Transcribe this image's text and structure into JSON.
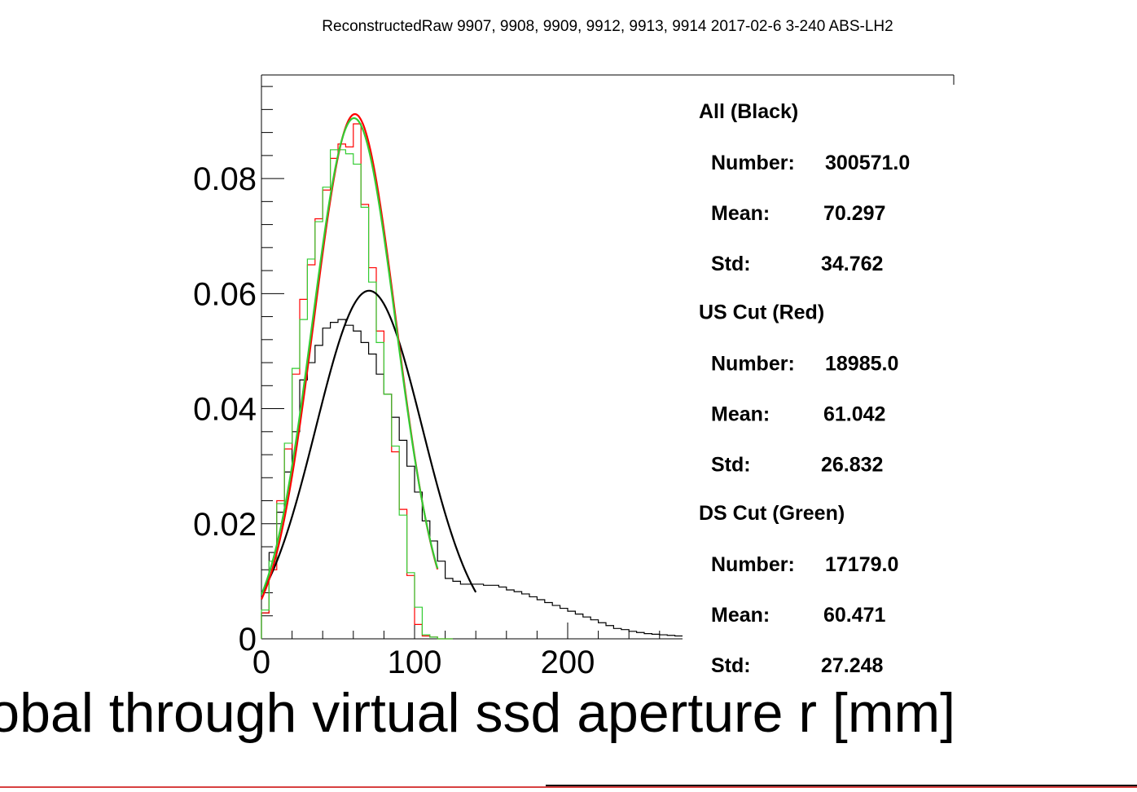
{
  "chart_data": {
    "type": "bar",
    "title": "ReconstructedRaw 9907, 9908, 9909, 9912, 9913, 9914 2017-02-6 3-240 ABS-LH2",
    "xlabel": "obal through virtual ssd aperture r [mm]",
    "ylabel": "",
    "xlim": [
      0,
      275
    ],
    "ylim": [
      0,
      0.098
    ],
    "x_ticks": [
      {
        "value": 0,
        "label": "0"
      },
      {
        "value": 100,
        "label": "100"
      },
      {
        "value": 200,
        "label": "200"
      }
    ],
    "y_ticks": [
      {
        "value": 0,
        "label": "0"
      },
      {
        "value": 0.02,
        "label": "0.02"
      },
      {
        "value": 0.04,
        "label": "0.04"
      },
      {
        "value": 0.06,
        "label": "0.06"
      },
      {
        "value": 0.08,
        "label": "0.08"
      }
    ],
    "bin_width": 5,
    "bin_start": 0,
    "series": [
      {
        "name": "All (Black)",
        "color": "#000000",
        "values": [
          0.0045,
          0.015,
          0.022,
          0.029,
          0.036,
          0.045,
          0.048,
          0.051,
          0.054,
          0.055,
          0.0555,
          0.0545,
          0.0535,
          0.0515,
          0.0495,
          0.046,
          0.0425,
          0.0385,
          0.0345,
          0.03,
          0.0255,
          0.0205,
          0.017,
          0.0135,
          0.0105,
          0.01,
          0.0095,
          0.0095,
          0.0095,
          0.0093,
          0.0093,
          0.009,
          0.0085,
          0.0082,
          0.0078,
          0.0073,
          0.0068,
          0.0063,
          0.0058,
          0.0053,
          0.0048,
          0.0043,
          0.0038,
          0.0033,
          0.0028,
          0.0023,
          0.0018,
          0.0016,
          0.0013,
          0.0011,
          0.0009,
          0.0008,
          0.0007,
          0.0006,
          0.0005
        ]
      },
      {
        "name": "US Cut (Red)",
        "color": "#ff0000",
        "values": [
          0.0045,
          0.012,
          0.024,
          0.033,
          0.046,
          0.059,
          0.065,
          0.073,
          0.078,
          0.0835,
          0.086,
          0.0855,
          0.0895,
          0.0755,
          0.0645,
          0.0535,
          0.0425,
          0.0325,
          0.0225,
          0.011,
          0.0025,
          0.0005,
          0.0003,
          0.0,
          0.0
        ]
      },
      {
        "name": "DS Cut (Green)",
        "color": "#33cc33",
        "values": [
          0.005,
          0.0135,
          0.0235,
          0.034,
          0.047,
          0.0555,
          0.066,
          0.0725,
          0.0785,
          0.085,
          0.085,
          0.0843,
          0.0825,
          0.075,
          0.062,
          0.0515,
          0.0425,
          0.0335,
          0.0215,
          0.0115,
          0.0055,
          0.0007,
          0.0003,
          0.0,
          0.0
        ]
      }
    ],
    "fits": [
      {
        "series": "All (Black)",
        "color": "#000000",
        "peak": 0.0605,
        "mean": 70.297,
        "sigma": 34.762,
        "x_range": [
          0,
          140
        ]
      },
      {
        "series": "US Cut (Red)",
        "color": "#ff0000",
        "peak": 0.0912,
        "mean": 61.042,
        "sigma": 26.832,
        "x_range": [
          0,
          115
        ]
      },
      {
        "series": "DS Cut (Green)",
        "color": "#33cc33",
        "peak": 0.0905,
        "mean": 60.471,
        "sigma": 27.248,
        "x_range": [
          0,
          115
        ]
      }
    ],
    "stats": [
      {
        "header": "All (Black)",
        "number_label": "Number:",
        "number": "300571.0",
        "mean_label": "Mean:",
        "mean": "70.297",
        "std_label": "Std:",
        "std": "34.762"
      },
      {
        "header": "US Cut (Red)",
        "number_label": "Number:",
        "number": "18985.0",
        "mean_label": "Mean:",
        "mean": "61.042",
        "std_label": "Std:",
        "std": "26.832"
      },
      {
        "header": "DS Cut (Green)",
        "number_label": "Number:",
        "number": "17179.0",
        "mean_label": "Mean:",
        "mean": "60.471",
        "std_label": "Std:",
        "std": "27.248"
      }
    ]
  }
}
